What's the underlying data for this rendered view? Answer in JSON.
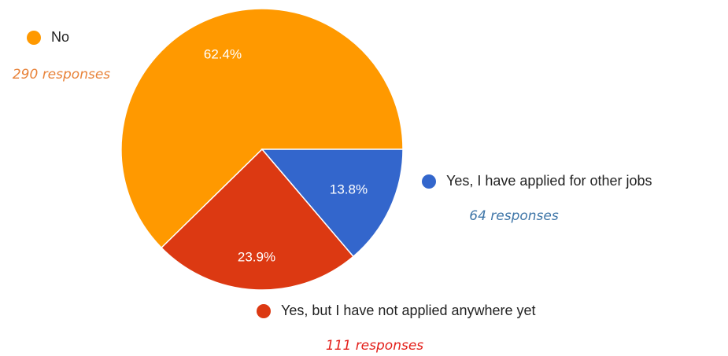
{
  "chart_data": {
    "type": "pie",
    "categories": [
      "No",
      "Yes, I have applied for other jobs",
      "Yes, but I have not applied anywhere yet"
    ],
    "values": [
      62.4,
      13.8,
      23.9
    ],
    "value_labels": [
      "62.4%",
      "13.8%",
      "23.9%"
    ],
    "colors": [
      "#ff9900",
      "#3366cc",
      "#dc3912"
    ],
    "annotations": [
      "290 responses",
      "64 responses",
      "111 responses"
    ],
    "annotation_colors": [
      "#e8833a",
      "#3f76a8",
      "#e3201b"
    ]
  }
}
